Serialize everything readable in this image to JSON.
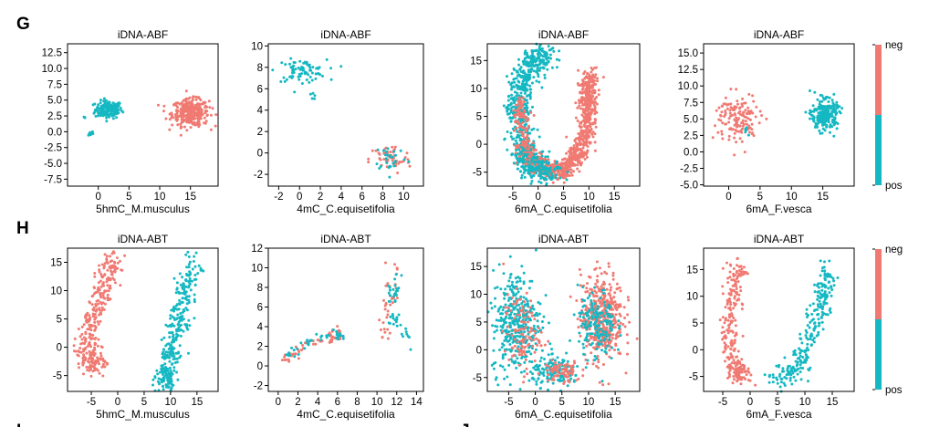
{
  "figure": {
    "row_labels": [
      "G",
      "H"
    ],
    "bottom_partial_labels": [
      "I",
      "J"
    ]
  },
  "colors": {
    "neg": "#f07a72",
    "pos": "#15b8c2"
  },
  "colorbar": {
    "labels": [
      "neg",
      "pos"
    ]
  },
  "chart_data": [
    {
      "type": "scatter",
      "row": "G",
      "title": "iDNA-ABF",
      "xlabel": "5hmC_M.musculus",
      "xlim": [
        -5,
        19.5
      ],
      "ylim": [
        -8.6,
        13.9
      ],
      "xticks": [
        0,
        5,
        10,
        15
      ],
      "yticks": [
        -7.5,
        -5.0,
        -2.5,
        0.0,
        2.5,
        5.0,
        7.5,
        10.0,
        12.5
      ],
      "clusters": [
        {
          "class": "pos",
          "shape": "blob",
          "cx": 1.7,
          "cy": 3.5,
          "rx": 2.2,
          "ry": 1.4,
          "n": 160
        },
        {
          "class": "pos",
          "shape": "blob",
          "cx": -2.2,
          "cy": 2.3,
          "rx": 0.15,
          "ry": 0.15,
          "n": 3
        },
        {
          "class": "pos",
          "shape": "blob",
          "cx": -1.3,
          "cy": -0.3,
          "rx": 0.5,
          "ry": 0.4,
          "n": 12
        },
        {
          "class": "neg",
          "shape": "blob",
          "cx": 15.0,
          "cy": 3.0,
          "rx": 3.0,
          "ry": 2.1,
          "n": 320
        }
      ]
    },
    {
      "type": "scatter",
      "row": "G",
      "title": "iDNA-ABF",
      "xlabel": "4mC_C.equisetifolia",
      "xlim": [
        -3,
        11.9
      ],
      "ylim": [
        -3.1,
        10.2
      ],
      "xticks": [
        -2,
        0,
        2,
        4,
        6,
        8,
        10
      ],
      "yticks": [
        -2,
        0,
        2,
        4,
        6,
        8,
        10
      ],
      "clusters": [
        {
          "class": "pos",
          "shape": "blob",
          "cx": 0.2,
          "cy": 7.7,
          "rx": 2.4,
          "ry": 1.0,
          "n": 80
        },
        {
          "class": "pos",
          "shape": "blob",
          "cx": 1.3,
          "cy": 5.3,
          "rx": 0.5,
          "ry": 0.4,
          "n": 5
        },
        {
          "class": "neg",
          "shape": "blob",
          "cx": 8.7,
          "cy": -0.6,
          "rx": 2.0,
          "ry": 1.4,
          "n": 55
        },
        {
          "class": "pos",
          "shape": "blob",
          "cx": 8.8,
          "cy": -0.4,
          "rx": 1.6,
          "ry": 1.3,
          "n": 28
        }
      ]
    },
    {
      "type": "scatter",
      "row": "G",
      "title": "iDNA-ABF",
      "xlabel": "6mA_C.equisetifolia",
      "xlim": [
        -10,
        20
      ],
      "ylim": [
        -7.5,
        18
      ],
      "xticks": [
        -5,
        0,
        5,
        10,
        15
      ],
      "yticks": [
        -5,
        0,
        5,
        10,
        15
      ],
      "clusters": [
        {
          "class": "neg",
          "shape": "path",
          "points": [
            [
              10,
              12
            ],
            [
              9.8,
              8
            ],
            [
              9.5,
              3
            ],
            [
              8,
              -2
            ],
            [
              5,
              -4.5
            ],
            [
              2,
              -4.5
            ],
            [
              -1,
              -3
            ],
            [
              -3,
              -1
            ]
          ],
          "width": 2.0,
          "n": 900
        },
        {
          "class": "pos",
          "shape": "path",
          "points": [
            [
              2,
              16
            ],
            [
              -1,
              15
            ],
            [
              -3,
              12
            ],
            [
              -4,
              8
            ],
            [
              -3.5,
              3
            ],
            [
              -2.5,
              -2
            ],
            [
              -1,
              -4.2
            ],
            [
              3,
              -5
            ]
          ],
          "width": 2.8,
          "n": 750
        },
        {
          "class": "neg",
          "shape": "path",
          "points": [
            [
              -3.5,
              8
            ],
            [
              -3,
              2
            ],
            [
              -1.5,
              -3
            ]
          ],
          "width": 1.6,
          "n": 120
        }
      ]
    },
    {
      "type": "scatter",
      "row": "G",
      "title": "iDNA-ABF",
      "xlabel": "6mA_F.vesca",
      "xlim": [
        -4,
        20
      ],
      "ylim": [
        -5.2,
        16.4
      ],
      "xticks": [
        0,
        5,
        10,
        15
      ],
      "yticks": [
        -5.0,
        -2.5,
        0.0,
        2.5,
        5.0,
        7.5,
        10.0,
        12.5,
        15.0
      ],
      "clusters": [
        {
          "class": "neg",
          "shape": "blob",
          "cx": 1.5,
          "cy": 5.0,
          "rx": 3.5,
          "ry": 4.0,
          "n": 140
        },
        {
          "class": "pos",
          "shape": "blob",
          "cx": 2.5,
          "cy": 3.5,
          "rx": 1.2,
          "ry": 1.0,
          "n": 6
        },
        {
          "class": "pos",
          "shape": "blob",
          "cx": 15.3,
          "cy": 5.6,
          "rx": 2.0,
          "ry": 2.3,
          "n": 240
        }
      ]
    },
    {
      "type": "scatter",
      "row": "H",
      "title": "iDNA-ABT",
      "xlabel": "5hmC_M.musculus",
      "xlim": [
        -9.5,
        19
      ],
      "ylim": [
        -7.8,
        17.5
      ],
      "xticks": [
        -5,
        0,
        5,
        10,
        15
      ],
      "yticks": [
        -5,
        0,
        5,
        10,
        15
      ],
      "clusters": [
        {
          "class": "neg",
          "shape": "path",
          "points": [
            [
              -1,
              16
            ],
            [
              -2,
              12
            ],
            [
              -4,
              7
            ],
            [
              -6,
              2
            ],
            [
              -5.5,
              -2
            ],
            [
              -4,
              -3.5
            ]
          ],
          "width": 2.4,
          "n": 320
        },
        {
          "class": "pos",
          "shape": "path",
          "points": [
            [
              14.5,
              15
            ],
            [
              13,
              10
            ],
            [
              11.5,
              5
            ],
            [
              10,
              0
            ],
            [
              9,
              -5
            ],
            [
              9,
              -6.5
            ]
          ],
          "width": 2.4,
          "n": 320
        }
      ]
    },
    {
      "type": "scatter",
      "row": "H",
      "title": "iDNA-ABT",
      "xlabel": "4mC_C.equisetifolia",
      "xlim": [
        -1,
        14.7
      ],
      "ylim": [
        -2.6,
        12
      ],
      "xticks": [
        0,
        2,
        4,
        6,
        8,
        10,
        12,
        14
      ],
      "yticks": [
        -2,
        0,
        2,
        4,
        6,
        8,
        10,
        12
      ],
      "clusters": [
        {
          "class": "neg",
          "shape": "path",
          "points": [
            [
              0.5,
              0.5
            ],
            [
              2.5,
              2
            ],
            [
              5,
              2.7
            ],
            [
              6,
              3.5
            ]
          ],
          "width": 0.7,
          "n": 60
        },
        {
          "class": "pos",
          "shape": "path",
          "points": [
            [
              0.8,
              1
            ],
            [
              3,
              2.3
            ],
            [
              5.5,
              3.3
            ],
            [
              6.3,
              3
            ]
          ],
          "width": 0.6,
          "n": 40
        },
        {
          "class": "neg",
          "shape": "path",
          "points": [
            [
              11.8,
              10
            ],
            [
              11.5,
              7
            ],
            [
              11,
              4.5
            ],
            [
              10.5,
              3
            ]
          ],
          "width": 0.8,
          "n": 35
        },
        {
          "class": "pos",
          "shape": "path",
          "points": [
            [
              12,
              9.5
            ],
            [
              11.5,
              6.5
            ],
            [
              12,
              4
            ],
            [
              13.5,
              2.5
            ]
          ],
          "width": 0.8,
          "n": 45
        }
      ]
    },
    {
      "type": "scatter",
      "row": "H",
      "title": "iDNA-ABT",
      "xlabel": "6mA_C.equisetifolia",
      "xlim": [
        -9,
        19.6
      ],
      "ylim": [
        -7.5,
        18.3
      ],
      "xticks": [
        -5,
        0,
        5,
        10,
        15
      ],
      "yticks": [
        -5,
        0,
        5,
        10,
        15
      ],
      "clusters": [
        {
          "class": "pos",
          "shape": "blob",
          "cx": -3.5,
          "cy": 5.0,
          "rx": 4.6,
          "ry": 9.5,
          "n": 380
        },
        {
          "class": "neg",
          "shape": "blob",
          "cx": -2.5,
          "cy": 3.0,
          "rx": 3.5,
          "ry": 7.0,
          "n": 110
        },
        {
          "class": "neg",
          "shape": "blob",
          "cx": 12.5,
          "cy": 6.0,
          "rx": 4.0,
          "ry": 8.0,
          "n": 420
        },
        {
          "class": "pos",
          "shape": "blob",
          "cx": 11.5,
          "cy": 4.5,
          "rx": 3.5,
          "ry": 6.5,
          "n": 170
        },
        {
          "class": "pos",
          "shape": "blob",
          "cx": 4.0,
          "cy": -4.0,
          "rx": 4.5,
          "ry": 2.5,
          "n": 150
        },
        {
          "class": "neg",
          "shape": "blob",
          "cx": 5.0,
          "cy": -4.0,
          "rx": 3.5,
          "ry": 2.0,
          "n": 80
        }
      ]
    },
    {
      "type": "scatter",
      "row": "H",
      "title": "iDNA-ABT",
      "xlabel": "6mA_F.vesca",
      "xlim": [
        -8.5,
        19
      ],
      "ylim": [
        -7.8,
        19
      ],
      "xticks": [
        -5,
        0,
        5,
        10,
        15
      ],
      "yticks": [
        -5,
        0,
        5,
        10,
        15
      ],
      "clusters": [
        {
          "class": "neg",
          "shape": "path",
          "points": [
            [
              -2,
              16
            ],
            [
              -3,
              11
            ],
            [
              -4,
              5
            ],
            [
              -3.5,
              0
            ],
            [
              -3,
              -4
            ],
            [
              -1,
              -5
            ]
          ],
          "width": 2.0,
          "n": 250
        },
        {
          "class": "pos",
          "shape": "path",
          "points": [
            [
              14,
              16
            ],
            [
              13.5,
              11
            ],
            [
              12,
              6
            ],
            [
              10,
              0
            ],
            [
              8,
              -4
            ],
            [
              5,
              -5.5
            ]
          ],
          "width": 2.2,
          "n": 250
        }
      ]
    }
  ]
}
